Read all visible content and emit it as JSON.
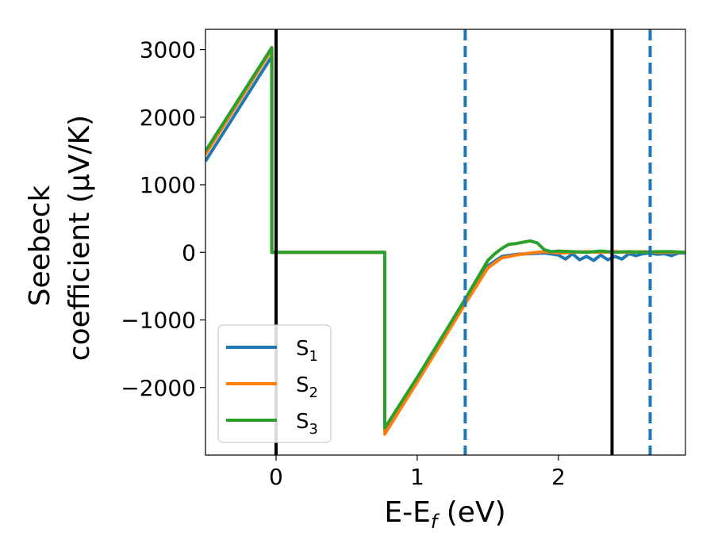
{
  "chart_data": {
    "type": "line",
    "title": "",
    "xlabel": "E-E",
    "xlabel_sub": "f",
    "xlabel_unit": " (eV)",
    "ylabel_line1": "Seebeck",
    "ylabel_line2": "coefficient  (μV/K)",
    "xlim": [
      -0.5,
      2.9
    ],
    "ylim": [
      -3000,
      3300
    ],
    "xticks": [
      0,
      1,
      2
    ],
    "xtick_labels": [
      "0",
      "1",
      "2"
    ],
    "yticks": [
      -2000,
      -1000,
      0,
      1000,
      2000,
      3000
    ],
    "ytick_labels": [
      "−2000",
      "−1000",
      "0",
      "1000",
      "2000",
      "3000"
    ],
    "grid": false,
    "legend_position": "lower-left",
    "vlines": [
      {
        "x": 0.0,
        "style": "solid",
        "color": "#000000"
      },
      {
        "x": 2.38,
        "style": "solid",
        "color": "#000000"
      },
      {
        "x": 1.34,
        "style": "dashed",
        "color": "#1f77b4"
      },
      {
        "x": 2.65,
        "style": "dashed",
        "color": "#1f77b4"
      }
    ],
    "series": [
      {
        "name": "S",
        "sub": "1",
        "color": "#1f77b4",
        "x": [
          -0.5,
          -0.03,
          -0.03,
          0.77,
          0.77,
          1.0,
          1.2,
          1.34,
          1.5,
          1.6,
          1.7,
          1.8,
          1.9,
          2.0,
          2.05,
          2.1,
          2.15,
          2.2,
          2.25,
          2.3,
          2.35,
          2.4,
          2.45,
          2.5,
          2.55,
          2.6,
          2.65,
          2.7,
          2.75,
          2.8,
          2.85,
          2.9
        ],
        "y": [
          1350,
          2900,
          0,
          0,
          -2650,
          -1880,
          -1200,
          -720,
          -200,
          -60,
          -30,
          -20,
          -10,
          -40,
          -100,
          -20,
          -110,
          -60,
          -120,
          -40,
          -110,
          -60,
          -100,
          -20,
          -50,
          -20,
          -10,
          -30,
          -20,
          -50,
          -10,
          -10
        ]
      },
      {
        "name": "S",
        "sub": "2",
        "color": "#ff7f0e",
        "x": [
          -0.5,
          -0.03,
          -0.03,
          0.77,
          0.77,
          1.0,
          1.2,
          1.34,
          1.5,
          1.6,
          1.7,
          1.8,
          1.9,
          2.0,
          2.1,
          2.2,
          2.3,
          2.4,
          2.5,
          2.6,
          2.7,
          2.8,
          2.9
        ],
        "y": [
          1450,
          3000,
          0,
          0,
          -2690,
          -1920,
          -1240,
          -760,
          -230,
          -80,
          -40,
          -10,
          10,
          -10,
          0,
          10,
          0,
          10,
          0,
          10,
          0,
          0,
          0
        ]
      },
      {
        "name": "S",
        "sub": "3",
        "color": "#2ca02c",
        "x": [
          -0.5,
          -0.03,
          -0.03,
          0.77,
          0.77,
          1.0,
          1.2,
          1.34,
          1.5,
          1.55,
          1.6,
          1.65,
          1.7,
          1.75,
          1.8,
          1.85,
          1.9,
          1.95,
          2.0,
          2.1,
          2.2,
          2.3,
          2.4,
          2.5,
          2.6,
          2.7,
          2.8,
          2.9
        ],
        "y": [
          1500,
          3030,
          0,
          0,
          -2600,
          -1850,
          -1170,
          -690,
          -120,
          -20,
          60,
          120,
          130,
          150,
          170,
          140,
          40,
          10,
          20,
          10,
          0,
          20,
          0,
          10,
          0,
          10,
          10,
          0
        ]
      }
    ]
  }
}
